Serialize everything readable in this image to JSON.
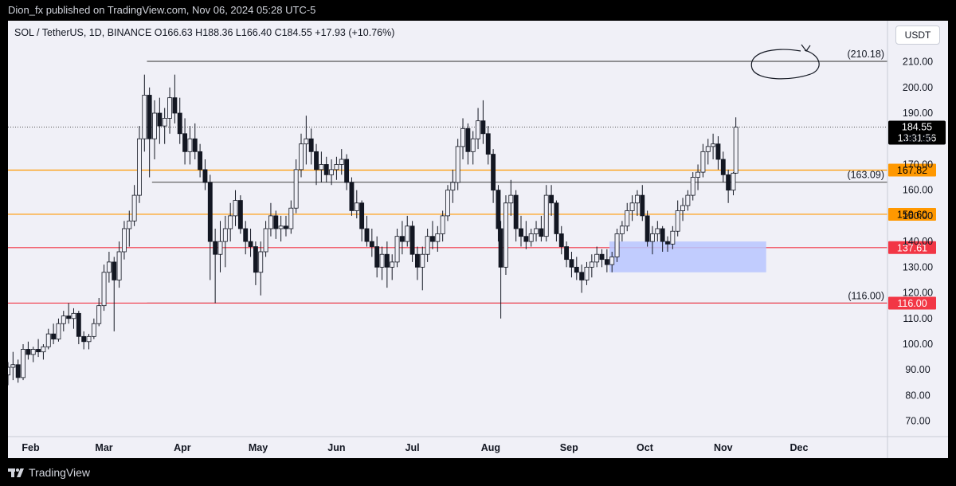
{
  "header": {
    "publisher_text": "Dion_fx published on TradingView.com, Nov 06, 2024 05:28 UTC-5"
  },
  "symbol_bar": {
    "text": "SOL / TetherUS, 1D, BINANCE  O166.63  H188.36  L166.40  C184.55  +17.93 (+10.76%)"
  },
  "currency_button": "USDT",
  "footer": {
    "brand": "TradingView"
  },
  "colors": {
    "up": "#26a69a",
    "candle": "#131722",
    "orange_level": "#ff9800",
    "red_level": "#f23645",
    "zone_fill": "#b9c6ff",
    "price_tag": "#000000"
  },
  "chart_data": {
    "type": "candlestick",
    "symbol": "SOL / TetherUS",
    "interval": "1D",
    "exchange": "BINANCE",
    "ohlc_last": {
      "open": 166.63,
      "high": 188.36,
      "low": 166.4,
      "close": 184.55,
      "change": 17.93,
      "change_pct": 10.76
    },
    "x_ticks": [
      "Feb",
      "Mar",
      "Apr",
      "May",
      "Jun",
      "Jul",
      "Aug",
      "Sep",
      "Oct",
      "Nov",
      "Dec"
    ],
    "y_ticks": [
      70,
      80,
      90,
      100,
      110,
      120,
      130,
      140,
      150,
      160,
      170,
      180,
      190,
      200,
      210
    ],
    "y_tick_labels": [
      "70.00",
      "80.00",
      "90.00",
      "100.00",
      "110.00",
      "120.00",
      "130.00",
      "140.00",
      "150.00",
      "160.00",
      "170.00",
      "180.00",
      "190.00",
      "200.00",
      "210.00"
    ],
    "ylim": [
      64,
      226
    ],
    "x_range": [
      "2024-01-23",
      "2025-01-05"
    ],
    "horizontal_levels": [
      {
        "value": 210.18,
        "label": "(210.18)",
        "color": "#555555",
        "start": "2024-03-18"
      },
      {
        "value": 163.09,
        "label": "(163.09)",
        "color": "#555555",
        "start": "2024-03-20"
      },
      {
        "value": 116.0,
        "label": "(116.00)",
        "color": "#555555",
        "start": "2024-03-18"
      },
      {
        "value": 167.82,
        "label": "167.82",
        "color": "#ff9800",
        "start": "2024-01-23"
      },
      {
        "value": 150.6,
        "label": "150.60",
        "color": "#ff9800",
        "start": "2024-01-23"
      },
      {
        "value": 137.61,
        "label": "137.61",
        "color": "#f23645",
        "start": "2024-01-23"
      },
      {
        "value": 116.0,
        "label": "116.00",
        "color": "#f23645",
        "start": "2024-01-23"
      }
    ],
    "current_price": {
      "value": 184.55,
      "label": "184.55",
      "countdown": "13:31:56"
    },
    "demand_zone": {
      "start": "2024-09-17",
      "end": "2024-11-18",
      "low": 128,
      "high": 140
    },
    "candles": [
      [
        "2024-01-23",
        88,
        93,
        84,
        91
      ],
      [
        "2024-01-25",
        91,
        97,
        86,
        92
      ],
      [
        "2024-01-27",
        92,
        94,
        85,
        87
      ],
      [
        "2024-01-29",
        87,
        100,
        86,
        98
      ],
      [
        "2024-01-31",
        98,
        101,
        94,
        96
      ],
      [
        "2024-02-02",
        96,
        99,
        93,
        98
      ],
      [
        "2024-02-04",
        98,
        102,
        95,
        97
      ],
      [
        "2024-02-06",
        97,
        100,
        94,
        99
      ],
      [
        "2024-02-08",
        99,
        106,
        98,
        104
      ],
      [
        "2024-02-10",
        104,
        108,
        100,
        102
      ],
      [
        "2024-02-12",
        102,
        110,
        101,
        108
      ],
      [
        "2024-02-14",
        108,
        113,
        105,
        111
      ],
      [
        "2024-02-16",
        111,
        116,
        108,
        110
      ],
      [
        "2024-02-18",
        110,
        114,
        106,
        112
      ],
      [
        "2024-02-20",
        112,
        113,
        100,
        103
      ],
      [
        "2024-02-22",
        103,
        105,
        98,
        101
      ],
      [
        "2024-02-24",
        101,
        104,
        98,
        103
      ],
      [
        "2024-02-26",
        103,
        110,
        102,
        108
      ],
      [
        "2024-02-28",
        108,
        118,
        107,
        115
      ],
      [
        "2024-03-01",
        115,
        131,
        113,
        128
      ],
      [
        "2024-03-03",
        128,
        136,
        124,
        132
      ],
      [
        "2024-03-05",
        132,
        134,
        105,
        125
      ],
      [
        "2024-03-07",
        125,
        140,
        122,
        136
      ],
      [
        "2024-03-09",
        136,
        148,
        133,
        145
      ],
      [
        "2024-03-11",
        145,
        152,
        138,
        148
      ],
      [
        "2024-03-13",
        148,
        162,
        146,
        158
      ],
      [
        "2024-03-15",
        158,
        185,
        155,
        180
      ],
      [
        "2024-03-17",
        180,
        205,
        175,
        197
      ],
      [
        "2024-03-19",
        197,
        200,
        165,
        180
      ],
      [
        "2024-03-21",
        180,
        195,
        172,
        190
      ],
      [
        "2024-03-23",
        190,
        196,
        178,
        185
      ],
      [
        "2024-03-25",
        185,
        192,
        178,
        188
      ],
      [
        "2024-03-27",
        188,
        200,
        182,
        196
      ],
      [
        "2024-03-29",
        196,
        205,
        186,
        190
      ],
      [
        "2024-03-31",
        190,
        196,
        178,
        182
      ],
      [
        "2024-04-02",
        182,
        188,
        170,
        175
      ],
      [
        "2024-04-04",
        175,
        185,
        170,
        180
      ],
      [
        "2024-04-06",
        180,
        186,
        172,
        175
      ],
      [
        "2024-04-08",
        175,
        178,
        165,
        168
      ],
      [
        "2024-04-10",
        168,
        172,
        160,
        163
      ],
      [
        "2024-04-12",
        163,
        166,
        125,
        140
      ],
      [
        "2024-04-14",
        140,
        145,
        116,
        135
      ],
      [
        "2024-04-16",
        135,
        148,
        128,
        140
      ],
      [
        "2024-04-18",
        140,
        150,
        130,
        145
      ],
      [
        "2024-04-20",
        145,
        155,
        140,
        150
      ],
      [
        "2024-04-22",
        150,
        160,
        146,
        156
      ],
      [
        "2024-04-24",
        156,
        158,
        143,
        145
      ],
      [
        "2024-04-26",
        145,
        148,
        135,
        140
      ],
      [
        "2024-04-28",
        140,
        145,
        134,
        138
      ],
      [
        "2024-04-30",
        138,
        140,
        123,
        128
      ],
      [
        "2024-05-02",
        128,
        140,
        119,
        136
      ],
      [
        "2024-05-04",
        136,
        148,
        134,
        145
      ],
      [
        "2024-05-06",
        145,
        155,
        142,
        150
      ],
      [
        "2024-05-08",
        150,
        152,
        141,
        145
      ],
      [
        "2024-05-10",
        145,
        150,
        140,
        146
      ],
      [
        "2024-05-12",
        146,
        150,
        142,
        145
      ],
      [
        "2024-05-14",
        145,
        156,
        143,
        153
      ],
      [
        "2024-05-16",
        153,
        172,
        151,
        168
      ],
      [
        "2024-05-18",
        168,
        182,
        165,
        178
      ],
      [
        "2024-05-20",
        178,
        189,
        170,
        180
      ],
      [
        "2024-05-22",
        180,
        184,
        170,
        175
      ],
      [
        "2024-05-24",
        175,
        178,
        162,
        168
      ],
      [
        "2024-05-26",
        168,
        175,
        163,
        170
      ],
      [
        "2024-05-28",
        170,
        173,
        163,
        166
      ],
      [
        "2024-05-30",
        166,
        172,
        162,
        168
      ],
      [
        "2024-06-01",
        168,
        173,
        164,
        170
      ],
      [
        "2024-06-03",
        170,
        176,
        166,
        172
      ],
      [
        "2024-06-05",
        172,
        174,
        160,
        163
      ],
      [
        "2024-06-07",
        163,
        165,
        150,
        152
      ],
      [
        "2024-06-09",
        152,
        160,
        149,
        155
      ],
      [
        "2024-06-11",
        155,
        156,
        140,
        145
      ],
      [
        "2024-06-13",
        145,
        150,
        138,
        140
      ],
      [
        "2024-06-15",
        140,
        145,
        134,
        138
      ],
      [
        "2024-06-17",
        138,
        142,
        126,
        130
      ],
      [
        "2024-06-19",
        130,
        138,
        125,
        135
      ],
      [
        "2024-06-21",
        135,
        140,
        122,
        130
      ],
      [
        "2024-06-23",
        130,
        135,
        125,
        132
      ],
      [
        "2024-06-25",
        132,
        145,
        130,
        142
      ],
      [
        "2024-06-27",
        142,
        148,
        135,
        140
      ],
      [
        "2024-06-29",
        140,
        150,
        138,
        146
      ],
      [
        "2024-07-01",
        146,
        148,
        132,
        135
      ],
      [
        "2024-07-03",
        135,
        138,
        125,
        130
      ],
      [
        "2024-07-05",
        130,
        138,
        121,
        135
      ],
      [
        "2024-07-07",
        135,
        145,
        132,
        142
      ],
      [
        "2024-07-09",
        142,
        148,
        137,
        140
      ],
      [
        "2024-07-11",
        140,
        146,
        136,
        143
      ],
      [
        "2024-07-13",
        143,
        152,
        140,
        150
      ],
      [
        "2024-07-15",
        150,
        162,
        148,
        160
      ],
      [
        "2024-07-17",
        160,
        168,
        155,
        163
      ],
      [
        "2024-07-19",
        163,
        180,
        160,
        177
      ],
      [
        "2024-07-21",
        177,
        188,
        172,
        184
      ],
      [
        "2024-07-23",
        184,
        186,
        170,
        175
      ],
      [
        "2024-07-25",
        175,
        183,
        170,
        180
      ],
      [
        "2024-07-27",
        180,
        192,
        176,
        187
      ],
      [
        "2024-07-29",
        187,
        195,
        178,
        182
      ],
      [
        "2024-07-31",
        182,
        185,
        170,
        174
      ],
      [
        "2024-08-02",
        174,
        176,
        155,
        160
      ],
      [
        "2024-08-04",
        160,
        162,
        140,
        145
      ],
      [
        "2024-08-05",
        145,
        148,
        110,
        130
      ],
      [
        "2024-08-07",
        130,
        158,
        127,
        155
      ],
      [
        "2024-08-09",
        155,
        164,
        150,
        158
      ],
      [
        "2024-08-11",
        158,
        160,
        140,
        145
      ],
      [
        "2024-08-13",
        145,
        150,
        138,
        142
      ],
      [
        "2024-08-15",
        142,
        148,
        137,
        140
      ],
      [
        "2024-08-17",
        140,
        145,
        138,
        143
      ],
      [
        "2024-08-19",
        143,
        148,
        140,
        145
      ],
      [
        "2024-08-21",
        145,
        150,
        140,
        142
      ],
      [
        "2024-08-23",
        142,
        162,
        140,
        158
      ],
      [
        "2024-08-25",
        158,
        162,
        150,
        155
      ],
      [
        "2024-08-27",
        155,
        156,
        140,
        143
      ],
      [
        "2024-08-29",
        143,
        146,
        135,
        138
      ],
      [
        "2024-08-31",
        138,
        140,
        130,
        133
      ],
      [
        "2024-09-02",
        133,
        136,
        126,
        130
      ],
      [
        "2024-09-04",
        130,
        134,
        125,
        128
      ],
      [
        "2024-09-06",
        128,
        131,
        120,
        125
      ],
      [
        "2024-09-08",
        125,
        132,
        123,
        130
      ],
      [
        "2024-09-10",
        130,
        135,
        126,
        132
      ],
      [
        "2024-09-12",
        132,
        138,
        130,
        135
      ],
      [
        "2024-09-14",
        135,
        137,
        130,
        133
      ],
      [
        "2024-09-16",
        133,
        137,
        128,
        131
      ],
      [
        "2024-09-18",
        131,
        136,
        128,
        134
      ],
      [
        "2024-09-20",
        134,
        145,
        132,
        143
      ],
      [
        "2024-09-22",
        143,
        148,
        140,
        146
      ],
      [
        "2024-09-24",
        146,
        155,
        144,
        152
      ],
      [
        "2024-09-26",
        152,
        158,
        148,
        155
      ],
      [
        "2024-09-28",
        155,
        160,
        150,
        158
      ],
      [
        "2024-09-30",
        158,
        162,
        148,
        150
      ],
      [
        "2024-10-02",
        150,
        152,
        138,
        140
      ],
      [
        "2024-10-04",
        140,
        146,
        135,
        143
      ],
      [
        "2024-10-06",
        143,
        148,
        140,
        145
      ],
      [
        "2024-10-08",
        145,
        146,
        136,
        140
      ],
      [
        "2024-10-10",
        140,
        142,
        136,
        139
      ],
      [
        "2024-10-12",
        139,
        146,
        137,
        144
      ],
      [
        "2024-10-14",
        144,
        156,
        142,
        152
      ],
      [
        "2024-10-16",
        152,
        157,
        148,
        154
      ],
      [
        "2024-10-18",
        154,
        160,
        152,
        158
      ],
      [
        "2024-10-20",
        158,
        167,
        156,
        165
      ],
      [
        "2024-10-22",
        165,
        170,
        160,
        167
      ],
      [
        "2024-10-24",
        167,
        178,
        165,
        175
      ],
      [
        "2024-10-26",
        175,
        180,
        170,
        177
      ],
      [
        "2024-10-28",
        177,
        182,
        172,
        178
      ],
      [
        "2024-10-30",
        178,
        181,
        168,
        172
      ],
      [
        "2024-11-01",
        172,
        175,
        163,
        166
      ],
      [
        "2024-11-03",
        166,
        168,
        155,
        160
      ],
      [
        "2024-11-05",
        160,
        167,
        158,
        166.63
      ],
      [
        "2024-11-06",
        166.63,
        188.36,
        166.4,
        184.55
      ]
    ]
  }
}
